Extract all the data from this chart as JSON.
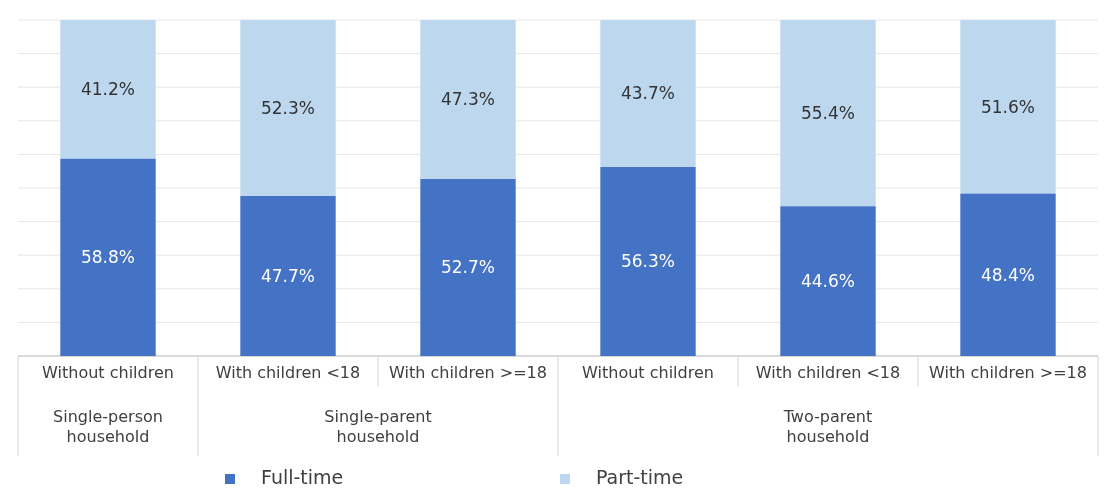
{
  "chart_data": {
    "type": "bar",
    "stacked": true,
    "categories": [
      "Without children",
      "With children <18",
      "With children >=18",
      "Without children",
      "With children <18",
      "With children >=18"
    ],
    "annotations": [
      "Single-person household",
      "Single-parent household",
      "Two-parent household"
    ],
    "series": [
      {
        "name": "Full-time",
        "color": "#4472c4",
        "values": [
          58.8,
          47.7,
          52.7,
          56.3,
          44.6,
          48.4
        ],
        "value_labels": [
          "58.8%",
          "47.7%",
          "52.7%",
          "56.3%",
          "44.6%",
          "48.4%"
        ]
      },
      {
        "name": "Part-time",
        "color": "#bdd7ee",
        "values": [
          41.2,
          52.3,
          47.3,
          43.7,
          55.4,
          51.6
        ],
        "value_labels": [
          "41.2%",
          "52.3%",
          "47.3%",
          "43.7%",
          "55.4%",
          "51.6%"
        ]
      }
    ],
    "ylim": [
      0,
      100
    ],
    "yticks": [
      {
        "value": 0,
        "label": null
      },
      {
        "value": 10,
        "label": null
      },
      {
        "value": 20,
        "label": null
      },
      {
        "value": 30,
        "label": null
      },
      {
        "value": 40,
        "label": null
      },
      {
        "value": 50,
        "label": null
      },
      {
        "value": 60,
        "label": null
      },
      {
        "value": 70,
        "label": null
      },
      {
        "value": 80,
        "label": null
      },
      {
        "value": 90,
        "label": null
      },
      {
        "value": 100,
        "label": null
      }
    ],
    "grid": "y",
    "tick_labels": "x",
    "legend": "bottom"
  }
}
